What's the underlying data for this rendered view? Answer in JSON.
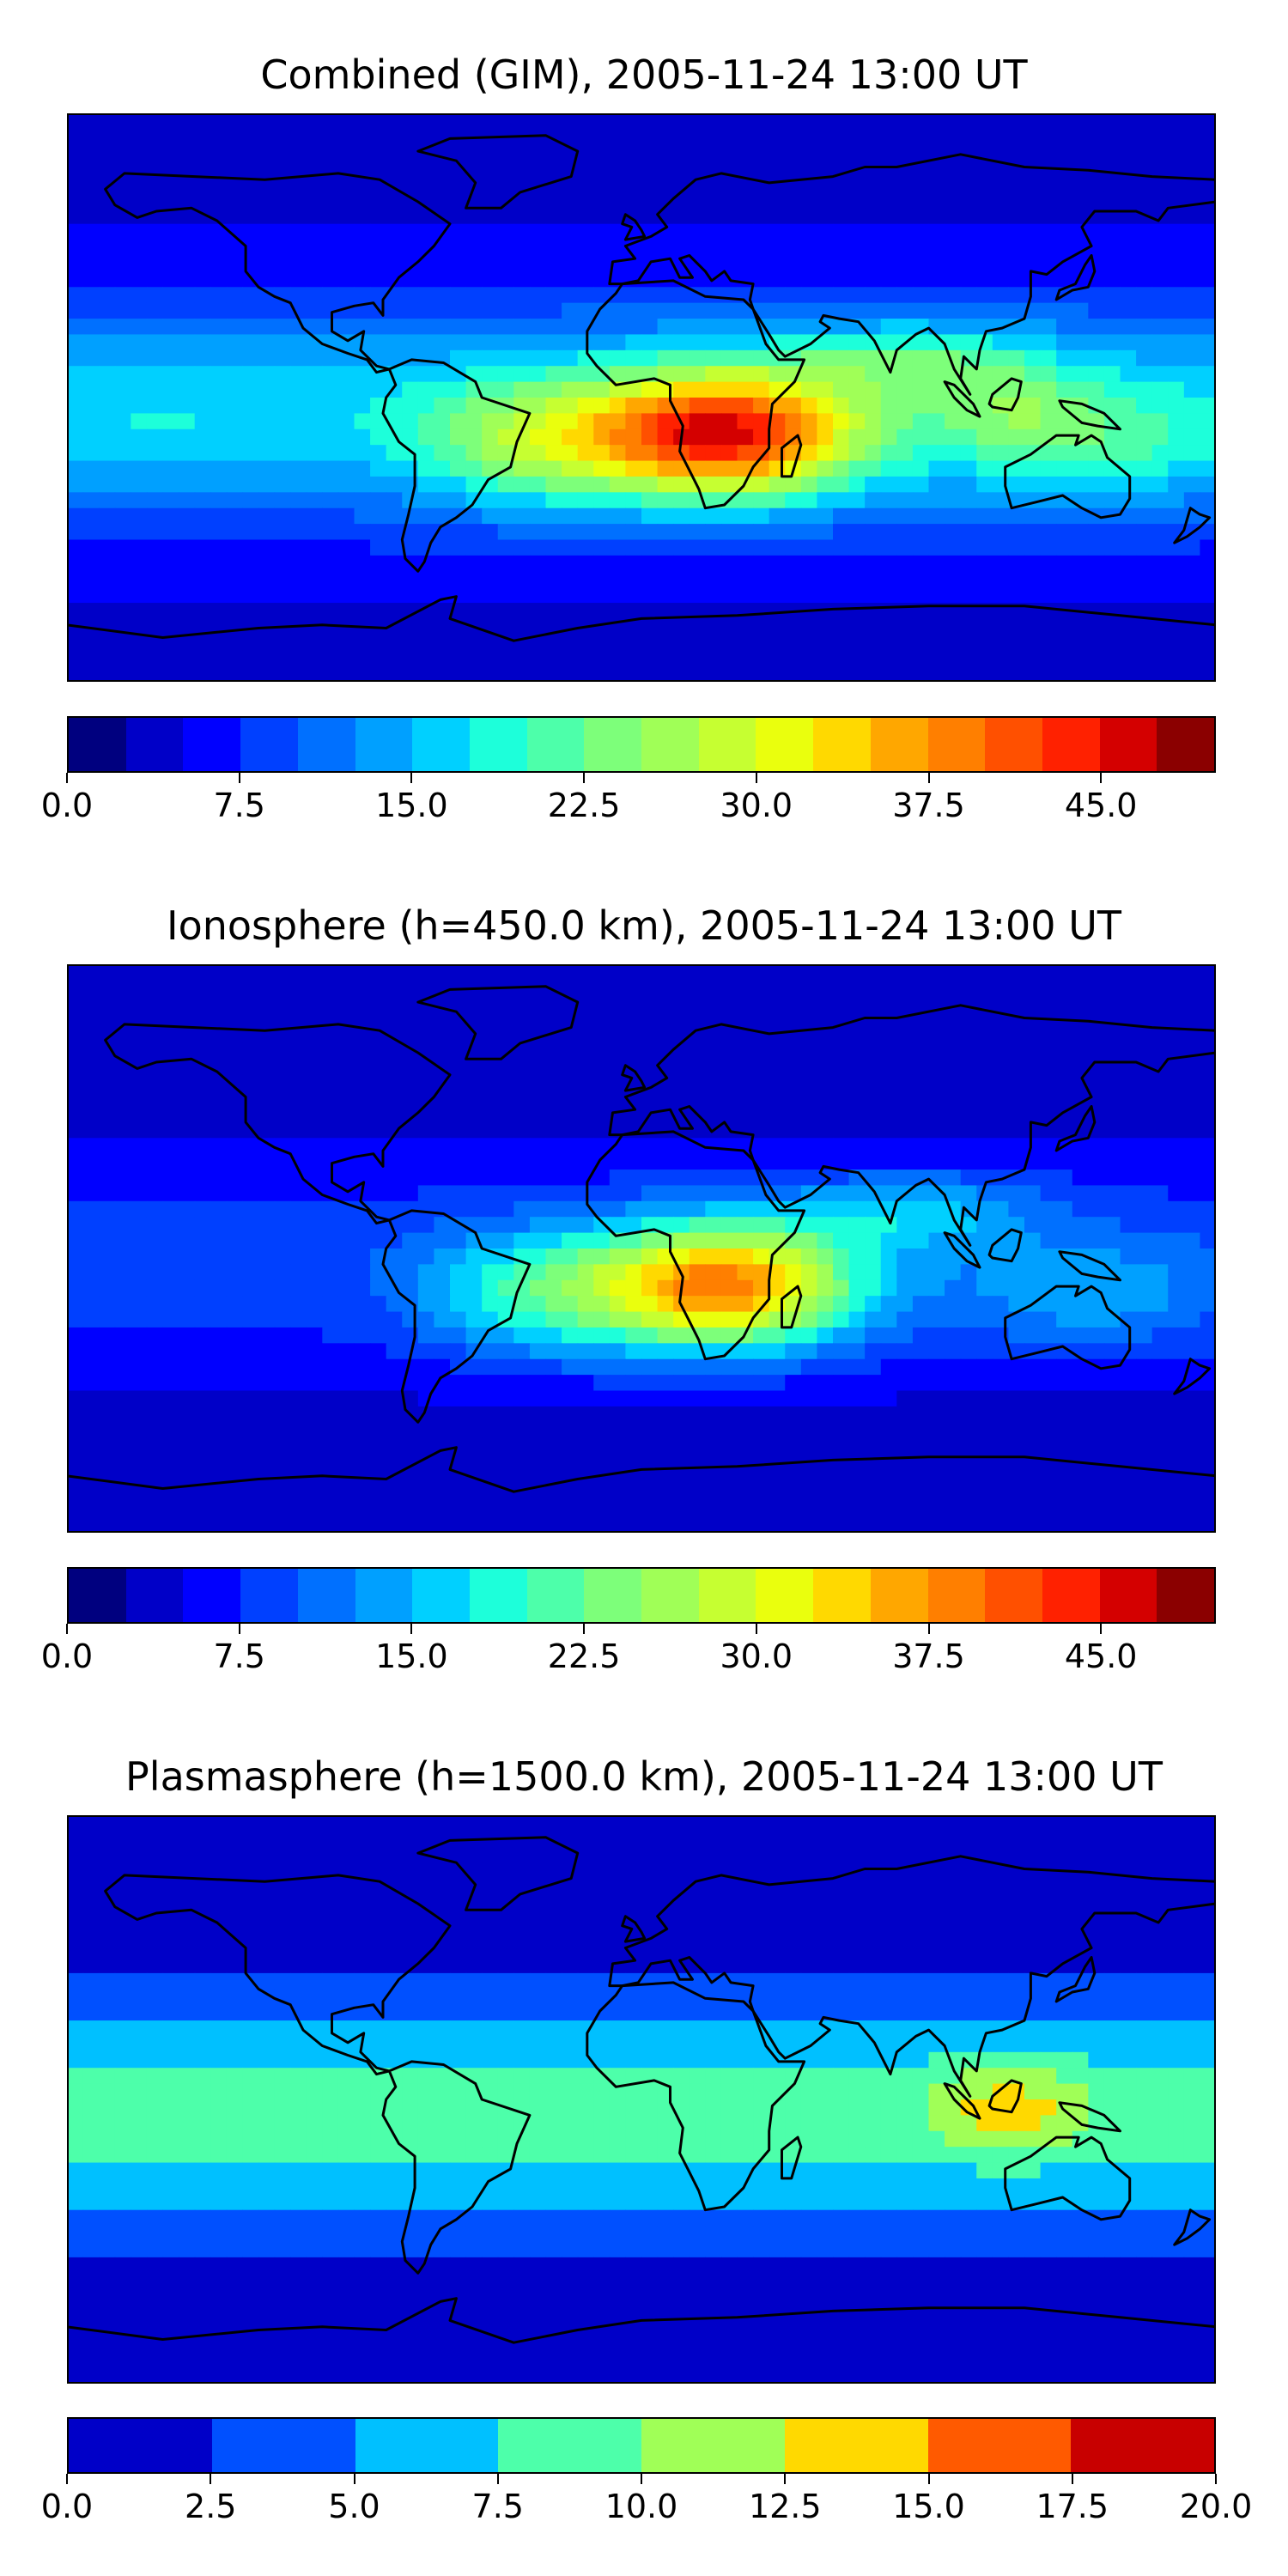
{
  "panels": [
    {
      "title": "Combined (GIM), 2005-11-24 13:00 UT",
      "kind": "combined",
      "colorbar": {
        "vmin": 0.0,
        "vmax": 50.0,
        "levels": 20,
        "ticks": [
          "0.0",
          "7.5",
          "15.0",
          "22.5",
          "30.0",
          "37.5",
          "45.0"
        ],
        "colors": [
          "#00007f",
          "#0000c8",
          "#0000ff",
          "#0040ff",
          "#0070ff",
          "#00a0ff",
          "#00d0ff",
          "#1dffda",
          "#4dffaa",
          "#7dff7a",
          "#a0ff57",
          "#c6ff31",
          "#eaff0d",
          "#ffd900",
          "#ffa700",
          "#ff7f00",
          "#ff5000",
          "#ff2100",
          "#d40000",
          "#8b0000"
        ]
      }
    },
    {
      "title": "Ionosphere  (h=450.0 km), 2005-11-24 13:00 UT",
      "kind": "ionosphere",
      "colorbar": {
        "vmin": 0.0,
        "vmax": 50.0,
        "levels": 20,
        "ticks": [
          "0.0",
          "7.5",
          "15.0",
          "22.5",
          "30.0",
          "37.5",
          "45.0"
        ],
        "colors": [
          "#00007f",
          "#0000c8",
          "#0000ff",
          "#0040ff",
          "#0070ff",
          "#00a0ff",
          "#00d0ff",
          "#1dffda",
          "#4dffaa",
          "#7dff7a",
          "#a0ff57",
          "#c6ff31",
          "#eaff0d",
          "#ffd900",
          "#ffa700",
          "#ff7f00",
          "#ff5000",
          "#ff2100",
          "#d40000",
          "#8b0000"
        ]
      }
    },
    {
      "title": "Plasmasphere (h=1500.0 km), 2005-11-24 13:00 UT",
      "kind": "plasmasphere",
      "colorbar": {
        "vmin": 0.0,
        "vmax": 20.0,
        "levels": 8,
        "ticks": [
          "0.0",
          "2.5",
          "5.0",
          "7.5",
          "10.0",
          "12.5",
          "15.0",
          "17.5",
          "20.0"
        ],
        "colors": [
          "#0000c8",
          "#0050ff",
          "#00c0ff",
          "#4dffaa",
          "#a0ff57",
          "#ffd900",
          "#ff5a00",
          "#c80000"
        ]
      }
    }
  ]
}
